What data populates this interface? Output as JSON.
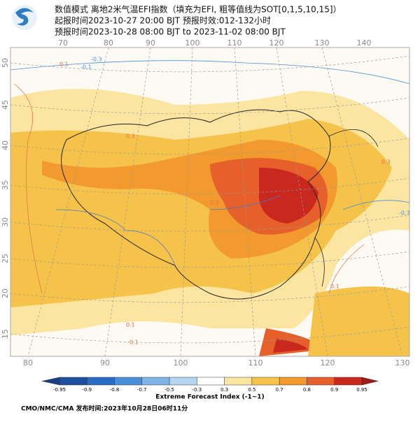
{
  "header": {
    "line1": "数值模式 离地2米气温EFI指数（填充为EFI, 粗等值线为SOT[0,1,5,10,15]）",
    "line2": "起报时间2023-10-27 20:00 BJT 预报时效:012-132小时",
    "line3": "预报时间2023-10-28 08:00 BJT to 2023-11-02 08:00 BJT"
  },
  "map": {
    "top_lon_labels": [
      "70",
      "80",
      "90",
      "100",
      "110",
      "120",
      "130",
      "140"
    ],
    "bottom_lon_labels": [
      "80",
      "90",
      "100",
      "110",
      "120",
      "130"
    ],
    "lat_labels": [
      "50",
      "45",
      "40",
      "35",
      "30",
      "25",
      "20",
      "15"
    ],
    "contour_labels": [
      "0.1",
      "-0.1",
      "-0.3",
      "0.3",
      "0.3",
      "0.3",
      "-0.3",
      "0.1",
      "0.1",
      "0.1"
    ]
  },
  "colorbar": {
    "labels": [
      "-0.95",
      "-0.9",
      "-0.8",
      "-0.7",
      "-0.5",
      "-0.3",
      "0.3",
      "0.5",
      "0.7",
      "0.8",
      "0.9",
      "0.95"
    ],
    "title": "Extreme Forecast Index (-1~1)"
  },
  "footer": "CMO/NMC/CMA 发布时间:2023年10月28日06时11分"
}
